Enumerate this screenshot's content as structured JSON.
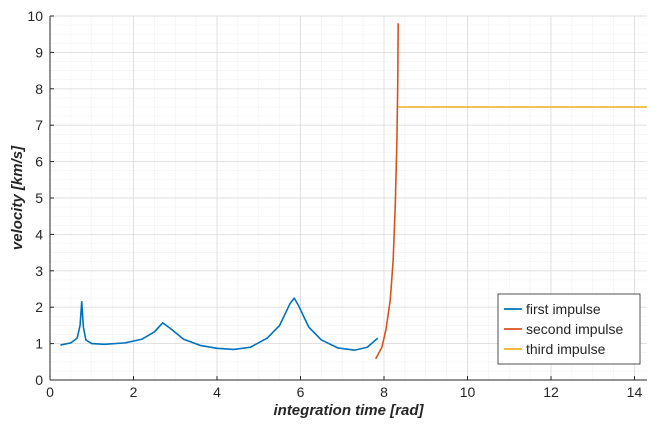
{
  "chart_data": {
    "type": "line",
    "title": "",
    "xlabel": "integration time [rad]",
    "ylabel": "velocity [km/s]",
    "xlim": [
      0,
      14.3
    ],
    "ylim": [
      0,
      10
    ],
    "xticks": [
      0,
      2,
      4,
      6,
      8,
      10,
      12,
      14
    ],
    "yticks": [
      0,
      1,
      2,
      3,
      4,
      5,
      6,
      7,
      8,
      9,
      10
    ],
    "grid": true,
    "minor_grid": true,
    "legend_position": "bottom-right",
    "series": [
      {
        "name": "first impulse",
        "color": "#0072BD",
        "points": [
          [
            0.25,
            0.96
          ],
          [
            0.5,
            1.02
          ],
          [
            0.65,
            1.15
          ],
          [
            0.72,
            1.5
          ],
          [
            0.76,
            2.15
          ],
          [
            0.8,
            1.45
          ],
          [
            0.86,
            1.1
          ],
          [
            1.0,
            1.0
          ],
          [
            1.3,
            0.98
          ],
          [
            1.8,
            1.02
          ],
          [
            2.2,
            1.12
          ],
          [
            2.5,
            1.32
          ],
          [
            2.7,
            1.57
          ],
          [
            2.9,
            1.4
          ],
          [
            3.2,
            1.12
          ],
          [
            3.6,
            0.95
          ],
          [
            4.0,
            0.87
          ],
          [
            4.4,
            0.84
          ],
          [
            4.8,
            0.9
          ],
          [
            5.2,
            1.15
          ],
          [
            5.5,
            1.5
          ],
          [
            5.75,
            2.1
          ],
          [
            5.85,
            2.25
          ],
          [
            5.95,
            2.05
          ],
          [
            6.2,
            1.45
          ],
          [
            6.5,
            1.1
          ],
          [
            6.9,
            0.88
          ],
          [
            7.3,
            0.82
          ],
          [
            7.6,
            0.9
          ],
          [
            7.85,
            1.15
          ]
        ]
      },
      {
        "name": "second impulse",
        "color": "#D95319",
        "points": [
          [
            7.8,
            0.58
          ],
          [
            7.95,
            0.9
          ],
          [
            8.05,
            1.4
          ],
          [
            8.15,
            2.2
          ],
          [
            8.22,
            3.3
          ],
          [
            8.27,
            4.8
          ],
          [
            8.31,
            6.6
          ],
          [
            8.33,
            8.2
          ],
          [
            8.34,
            9.8
          ]
        ]
      },
      {
        "name": "third impulse",
        "color": "#EDB120",
        "points": [
          [
            8.34,
            7.5
          ],
          [
            14.3,
            7.5
          ]
        ]
      }
    ]
  }
}
